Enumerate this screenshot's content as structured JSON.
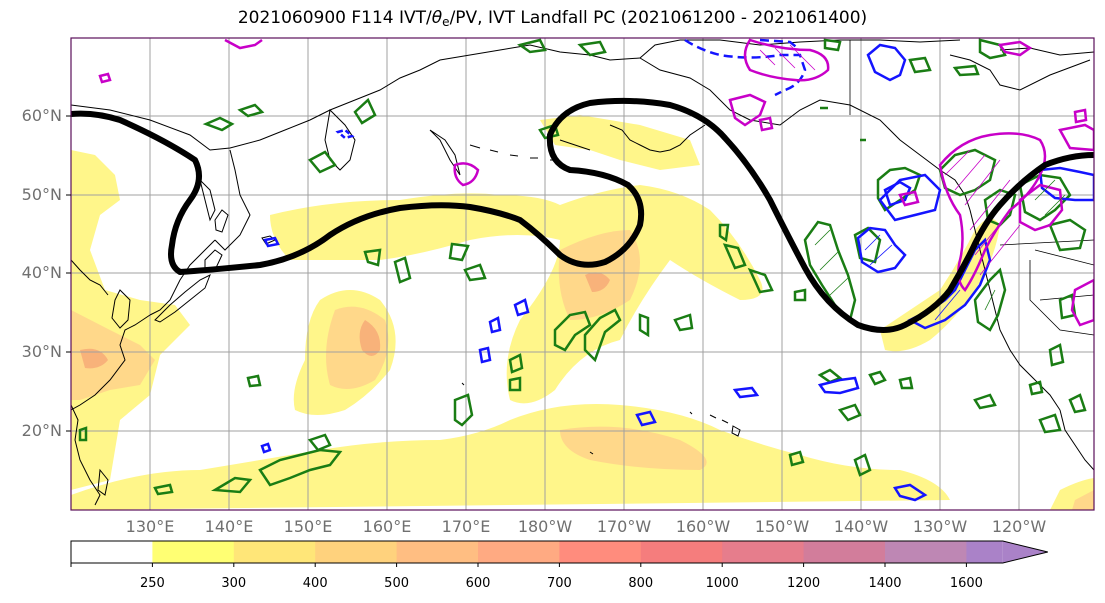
{
  "title": {
    "prefix": "2021060900 F114 IVT/",
    "theta": "θ",
    "theta_sub": "e",
    "suffix": "/PV, IVT Landfall PC (2021061200 - 2021061400)"
  },
  "lat_labels": [
    "60°N",
    "50°N",
    "40°N",
    "30°N",
    "20°N"
  ],
  "lon_labels": [
    "130°E",
    "140°E",
    "150°E",
    "160°E",
    "170°E",
    "180°W",
    "170°W",
    "160°W",
    "150°W",
    "140°W",
    "130°W",
    "120°W"
  ],
  "colorbar": {
    "levels": [
      "250",
      "300",
      "400",
      "500",
      "600",
      "700",
      "800",
      "1000",
      "1200",
      "1400",
      "1600"
    ],
    "colors": [
      "#ffffff",
      "#ffff73",
      "#ffe678",
      "#ffd27d",
      "#ffbe82",
      "#ffaa82",
      "#ff8c7d",
      "#f57d7d",
      "#e67d8c",
      "#d27d9b",
      "#be87b4",
      "#aa82c8"
    ]
  },
  "colors": {
    "ivt_low": "#fff68a",
    "ivt_mid": "#ffd88a",
    "ivt_high": "#f8b27a",
    "pc_line": "#000000",
    "pv_green": "#1a7d14",
    "pv_blue": "#1414ff",
    "pv_magenta": "#c800c8",
    "coast": "#000000",
    "grid": "#a0a0a0"
  }
}
